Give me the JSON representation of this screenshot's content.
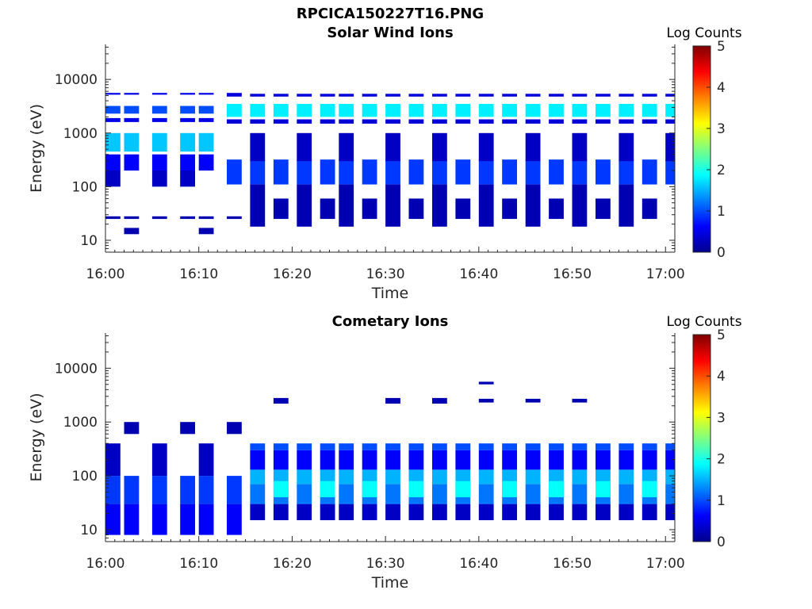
{
  "figure_title": "RPCICA150227T16.PNG",
  "colors": {
    "background": "#ffffff",
    "axes": "#262626",
    "colormap": [
      "#00008f",
      "#0000ff",
      "#0080ff",
      "#00ffff",
      "#80ff80",
      "#ffff00",
      "#ff8000",
      "#ff0000",
      "#800000"
    ]
  },
  "chart_data": [
    {
      "type": "heatmap",
      "title": "Solar Wind Ions",
      "xlabel": "Time",
      "ylabel": "Energy (eV)",
      "yscale": "log",
      "xlim_min": [
        0,
        61
      ],
      "ylim": [
        6,
        45000
      ],
      "xticks": [
        0,
        10,
        20,
        30,
        40,
        50,
        60
      ],
      "xtick_labels": [
        "16:00",
        "16:10",
        "16:20",
        "16:30",
        "16:40",
        "16:50",
        "17:00"
      ],
      "yticks": [
        10,
        100,
        1000,
        10000
      ],
      "ytick_labels": [
        "10",
        "100",
        "1000",
        "10000"
      ],
      "colorbar": {
        "label": "Log Counts",
        "range": [
          0,
          5
        ],
        "ticks": [
          "0",
          "1",
          "2",
          "3",
          "4",
          "5"
        ]
      },
      "columns_min": [
        0,
        2,
        5,
        8,
        10,
        13,
        15.5,
        18,
        20.5,
        23,
        25,
        27.5,
        30,
        32.5,
        35,
        37.5,
        40,
        42.5,
        45,
        47.5,
        50,
        52.5,
        55,
        57.5,
        60
      ],
      "bands": [
        {
          "cols": [
            0,
            1,
            2,
            3,
            4,
            5
          ],
          "e": [
            5200,
            5600
          ],
          "v": 0.5
        },
        {
          "cols": [
            0,
            1,
            2,
            3,
            4
          ],
          "e": [
            2300,
            3200
          ],
          "v": 1.0
        },
        {
          "cols": [
            0,
            1,
            2,
            3,
            4
          ],
          "e": [
            1600,
            1900
          ],
          "v": 0.5
        },
        {
          "cols": [
            0,
            1,
            2,
            3,
            4
          ],
          "e": [
            450,
            1000
          ],
          "v": 1.6
        },
        {
          "cols": [
            0,
            1,
            2,
            3,
            4
          ],
          "e": [
            200,
            400
          ],
          "v": 0.6
        },
        {
          "cols": [
            0,
            2,
            3
          ],
          "e": [
            100,
            200
          ],
          "v": 0.3
        },
        {
          "cols": [
            0,
            1,
            2,
            3,
            4,
            5
          ],
          "e": [
            25,
            28
          ],
          "v": 0.2
        },
        {
          "cols": [
            1,
            4
          ],
          "e": [
            13,
            17
          ],
          "v": 0.2
        },
        {
          "cols": [
            5,
            6,
            7,
            8,
            9,
            10,
            11,
            12,
            13,
            14,
            15,
            16,
            17,
            18,
            19,
            20,
            21,
            22,
            23,
            24
          ],
          "e": [
            2000,
            3500
          ],
          "v": 1.8
        },
        {
          "cols": [
            5,
            6,
            7,
            8,
            9,
            10,
            11,
            12,
            13,
            14,
            15,
            16,
            17,
            18,
            19,
            20,
            21,
            22,
            23,
            24
          ],
          "e": [
            4800,
            5400
          ],
          "v": 0.4
        },
        {
          "cols": [
            5,
            6,
            7,
            8,
            9,
            10,
            11,
            12,
            13,
            14,
            15,
            16,
            17,
            18,
            19,
            20,
            21,
            22,
            23,
            24
          ],
          "e": [
            1500,
            1800
          ],
          "v": 0.4
        },
        {
          "cols": [
            5,
            6,
            7,
            8,
            9,
            10,
            11,
            12,
            13,
            14,
            15,
            16,
            17,
            18,
            19,
            20,
            21,
            22,
            23,
            24
          ],
          "e": [
            110,
            320
          ],
          "v": 0.9
        },
        {
          "cols": [
            6,
            8,
            10,
            12,
            14,
            16,
            18,
            20,
            22,
            24
          ],
          "e": [
            300,
            1000
          ],
          "v": 0.3
        },
        {
          "cols": [
            6,
            8,
            10,
            12,
            14,
            16,
            18,
            20,
            22
          ],
          "e": [
            18,
            110
          ],
          "v": 0.2
        },
        {
          "cols": [
            7,
            9,
            11,
            13,
            15,
            17,
            19,
            21,
            23
          ],
          "e": [
            25,
            60
          ],
          "v": 0.2
        }
      ]
    },
    {
      "type": "heatmap",
      "title": "Cometary Ions",
      "xlabel": "Time",
      "ylabel": "Energy (eV)",
      "yscale": "log",
      "xlim_min": [
        0,
        61
      ],
      "ylim": [
        6,
        45000
      ],
      "xticks": [
        0,
        10,
        20,
        30,
        40,
        50,
        60
      ],
      "xtick_labels": [
        "16:00",
        "16:10",
        "16:20",
        "16:30",
        "16:40",
        "16:50",
        "17:00"
      ],
      "yticks": [
        10,
        100,
        1000,
        10000
      ],
      "ytick_labels": [
        "10",
        "100",
        "1000",
        "10000"
      ],
      "colorbar": {
        "label": "Log Counts",
        "range": [
          0,
          5
        ],
        "ticks": [
          "0",
          "1",
          "2",
          "3",
          "4",
          "5"
        ]
      },
      "columns_min": [
        0,
        2,
        5,
        8,
        10,
        13,
        15.5,
        18,
        20.5,
        23,
        25,
        27.5,
        30,
        32.5,
        35,
        37.5,
        40,
        42.5,
        45,
        47.5,
        50,
        52.5,
        55,
        57.5,
        60
      ],
      "bands": [
        {
          "cols": [
            0,
            1,
            2,
            3,
            4,
            5
          ],
          "e": [
            8,
            30
          ],
          "v": 0.6
        },
        {
          "cols": [
            0,
            1,
            2,
            3,
            4,
            5
          ],
          "e": [
            30,
            100
          ],
          "v": 0.9
        },
        {
          "cols": [
            0,
            2,
            4
          ],
          "e": [
            100,
            400
          ],
          "v": 0.3
        },
        {
          "cols": [
            6,
            7,
            8,
            9,
            10,
            11,
            12,
            13,
            14,
            15,
            16,
            17,
            18,
            19,
            20,
            21,
            22,
            23,
            24
          ],
          "e": [
            15,
            30
          ],
          "v": 0.3
        },
        {
          "cols": [
            6,
            7,
            8,
            9,
            10,
            11,
            12,
            13,
            14,
            15,
            16,
            17,
            18,
            19,
            20,
            21,
            22,
            23,
            24
          ],
          "e": [
            30,
            70
          ],
          "v": 1.2
        },
        {
          "cols": [
            6,
            7,
            8,
            9,
            10,
            11,
            12,
            13,
            14,
            15,
            16,
            17,
            18,
            19,
            20,
            21,
            22,
            23,
            24
          ],
          "e": [
            70,
            130
          ],
          "v": 1.5
        },
        {
          "cols": [
            6,
            7,
            8,
            9,
            10,
            11,
            12,
            13,
            14,
            15,
            16,
            17,
            18,
            19,
            20,
            21,
            22,
            23,
            24
          ],
          "e": [
            130,
            300
          ],
          "v": 0.6
        },
        {
          "cols": [
            6,
            7,
            8,
            9,
            10,
            11,
            12,
            13,
            14,
            15,
            16,
            17,
            18,
            19,
            20,
            21,
            22,
            23,
            24
          ],
          "e": [
            300,
            400
          ],
          "v": 1.0
        },
        {
          "cols": [
            7,
            9,
            11,
            13,
            15,
            17,
            19,
            21,
            23
          ],
          "e": [
            40,
            80
          ],
          "v": 1.9
        },
        {
          "cols": [
            1,
            3,
            5
          ],
          "e": [
            600,
            1000
          ],
          "v": 0.2
        },
        {
          "cols": [
            7,
            12,
            14
          ],
          "e": [
            2200,
            2800
          ],
          "v": 0.2
        },
        {
          "cols": [
            16,
            18,
            20
          ],
          "e": [
            2300,
            2700
          ],
          "v": 0.2
        },
        {
          "cols": [
            16
          ],
          "e": [
            5000,
            5600
          ],
          "v": 0.2
        }
      ]
    }
  ]
}
